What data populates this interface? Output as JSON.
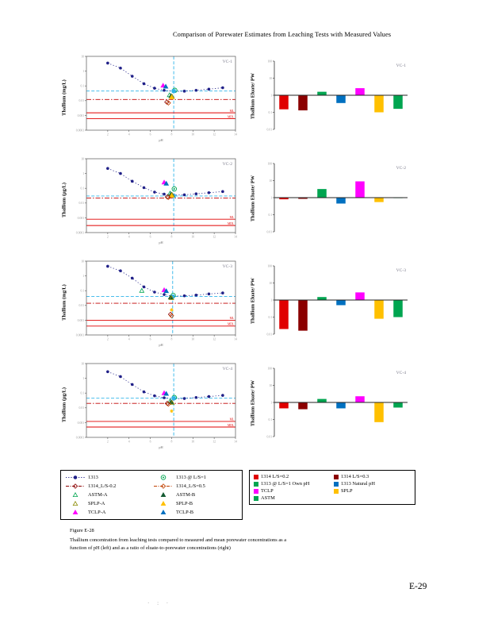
{
  "page": {
    "header_title": "Comparison of Porewater Estimates from Leaching Tests with Measured Values",
    "figure_label": "Figure E-28",
    "caption": "Thallium concentration from leaching tests compared to measured and mean porewater concentrations as a function of pH (left) and as a ratio of eluate-to-porewater concentrations (right)",
    "page_number": "E-29",
    "footer_marks": "· : ·"
  },
  "colors": {
    "series_1313": "#202088",
    "porewater_line": "#2FB4E9",
    "mean_pw_line": "#C00000",
    "limit_line": "#E00000",
    "axis": "#555555",
    "tick_text": "#999999",
    "title_text": "#777788"
  },
  "legend_left": {
    "items": [
      {
        "label": "1313",
        "shape": "circle",
        "color": "#202088",
        "open": false,
        "line": "dotted"
      },
      {
        "label": "1313 @ L/S=1",
        "shape": "ring",
        "color": "#00A550",
        "open": true,
        "line": "none"
      },
      {
        "label": "1314_L/S-0.2",
        "shape": "diamond",
        "color": "#8B0000",
        "open": true,
        "line": "dashdot"
      },
      {
        "label": "1314_L/S=0.5",
        "shape": "diamond",
        "color": "#C04000",
        "open": true,
        "line": "dashdot"
      },
      {
        "label": "ASTM-A",
        "shape": "triangle",
        "color": "#00A550",
        "open": true,
        "line": "none"
      },
      {
        "label": "ASTM-B",
        "shape": "triangle",
        "color": "#145A32",
        "open": false,
        "line": "none"
      },
      {
        "label": "SPLP-A",
        "shape": "triangle",
        "color": "#8A8A00",
        "open": true,
        "line": "none"
      },
      {
        "label": "SPLP-B",
        "shape": "triangle",
        "color": "#FFC000",
        "open": false,
        "line": "none"
      },
      {
        "label": "TCLP-A",
        "shape": "triangle",
        "color": "#FF00FF",
        "open": false,
        "line": "none"
      },
      {
        "label": "TCLP-B",
        "shape": "triangle",
        "color": "#0070C0",
        "open": false,
        "line": "none"
      }
    ]
  },
  "legend_right": {
    "items": [
      {
        "label": "1314 L/S=0.2",
        "color": "#E00000"
      },
      {
        "label": "1314 L/S=0.3",
        "color": "#8B0000"
      },
      {
        "label": "1313 @ L/S=1 Own pH",
        "color": "#00A550"
      },
      {
        "label": "1313 Natural pH",
        "color": "#0070C0"
      },
      {
        "label": "TCLP",
        "color": "#FF00FF"
      },
      {
        "label": "SPLP",
        "color": "#FFC000"
      },
      {
        "label": "ASTM",
        "color": "#00A550"
      }
    ]
  },
  "chart_data": [
    {
      "type": "scatter",
      "title": "VC-1",
      "ylabel": "Thallium (mg/L)",
      "xlabel": "pH",
      "xlim": [
        0,
        14
      ],
      "ylim": [
        0.0001,
        10
      ],
      "xticks": [
        2,
        4,
        6,
        8,
        10,
        12,
        14
      ],
      "yticks": [
        10,
        1,
        0.1,
        0.01,
        0.001,
        0.0001
      ],
      "series": {
        "name": "1313",
        "x": [
          2.0,
          3.2,
          4.3,
          5.4,
          6.4,
          7.3,
          8.2,
          9.2,
          10.3,
          11.5,
          12.8
        ],
        "y": [
          3.5,
          1.6,
          0.45,
          0.14,
          0.07,
          0.05,
          0.042,
          0.044,
          0.05,
          0.06,
          0.075
        ]
      },
      "points": [
        {
          "name": "TCLP-A",
          "shape": "triangle",
          "color": "#FF00FF",
          "open": false,
          "x": 7.2,
          "y": 0.105
        },
        {
          "name": "TCLP-B",
          "shape": "triangle",
          "color": "#0070C0",
          "open": false,
          "x": 7.45,
          "y": 0.09
        },
        {
          "name": "1313 @ L/S=1",
          "shape": "ring",
          "color": "#00A550",
          "open": true,
          "x": 8.3,
          "y": 0.05
        },
        {
          "name": "Measured PW",
          "shape": "square",
          "color": "#2FB4E9",
          "open": false,
          "x": 8.2,
          "y": 0.045
        },
        {
          "name": "ASTM-A",
          "shape": "triangle",
          "color": "#00A550",
          "open": true,
          "x": 7.8,
          "y": 0.024
        },
        {
          "name": "ASTM-B",
          "shape": "triangle",
          "color": "#145A32",
          "open": false,
          "x": 7.95,
          "y": 0.021
        },
        {
          "name": "SPLP-A",
          "shape": "triangle",
          "color": "#8A8A00",
          "open": true,
          "x": 8.05,
          "y": 0.019
        },
        {
          "name": "SPLP-B",
          "shape": "triangle",
          "color": "#FFC000",
          "open": false,
          "x": 8.0,
          "y": 0.017
        },
        {
          "name": "1314_L/S-0.2",
          "shape": "diamond",
          "color": "#8B0000",
          "open": true,
          "x": 7.55,
          "y": 0.008
        },
        {
          "name": "1314_L/S=0.5",
          "shape": "diamond",
          "color": "#C04000",
          "open": true,
          "x": 7.7,
          "y": 0.007
        }
      ],
      "refs": {
        "measured_pw": 0.045,
        "pw_ph": 8.2,
        "mean_pw": 0.012,
        "limits": [
          0.0015,
          0.0006
        ],
        "limit_labels": [
          "ML",
          "MDL"
        ]
      }
    },
    {
      "type": "bar",
      "title": "VC-1",
      "ylabel": "Thallium Eluate/ PW",
      "ylim": [
        0.01,
        100
      ],
      "baseline": 1,
      "yticks": [
        100,
        10,
        1,
        0.1,
        0.01
      ],
      "categories": [
        "1314 L/S=0.2",
        "1314 L/S=0.3",
        "1313 @ L/S=1 Own pH",
        "1313 Natural pH",
        "TCLP",
        "SPLP",
        "ASTM"
      ],
      "values": [
        0.15,
        0.13,
        1.6,
        0.35,
        2.6,
        0.1,
        0.16
      ],
      "colors": [
        "#E00000",
        "#8B0000",
        "#00A550",
        "#0070C0",
        "#FF00FF",
        "#FFC000",
        "#00A550"
      ]
    },
    {
      "type": "scatter",
      "title": "VC-2",
      "ylabel": "Thallium (µg/L)",
      "xlabel": "pH",
      "xlim": [
        0,
        14
      ],
      "ylim": [
        0.0001,
        10
      ],
      "xticks": [
        2,
        4,
        6,
        8,
        10,
        12,
        14
      ],
      "yticks": [
        10,
        1,
        0.1,
        0.01,
        0.001,
        0.0001
      ],
      "series": {
        "name": "1313",
        "x": [
          2.0,
          3.2,
          4.3,
          5.4,
          6.4,
          7.3,
          8.2,
          9.2,
          10.3,
          11.5,
          12.8
        ],
        "y": [
          2.2,
          1.0,
          0.3,
          0.11,
          0.055,
          0.04,
          0.034,
          0.036,
          0.042,
          0.05,
          0.06
        ]
      },
      "points": [
        {
          "name": "TCLP-A",
          "shape": "triangle",
          "color": "#FF00FF",
          "open": false,
          "x": 7.3,
          "y": 0.25
        },
        {
          "name": "TCLP-B",
          "shape": "triangle",
          "color": "#0070C0",
          "open": false,
          "x": 7.5,
          "y": 0.21
        },
        {
          "name": "1313 @ L/S=1",
          "shape": "ring",
          "color": "#00A550",
          "open": true,
          "x": 8.25,
          "y": 0.09
        },
        {
          "name": "Measured PW",
          "shape": "square",
          "color": "#2FB4E9",
          "open": false,
          "x": 8.2,
          "y": 0.03
        },
        {
          "name": "ASTM-A",
          "shape": "triangle",
          "color": "#00A550",
          "open": true,
          "x": 7.85,
          "y": 0.045
        },
        {
          "name": "ASTM-B",
          "shape": "triangle",
          "color": "#145A32",
          "open": false,
          "x": 7.95,
          "y": 0.04
        },
        {
          "name": "SPLP-A",
          "shape": "triangle",
          "color": "#8A8A00",
          "open": true,
          "x": 8.05,
          "y": 0.036
        },
        {
          "name": "SPLP-B",
          "shape": "triangle",
          "color": "#FFC000",
          "open": false,
          "x": 8.0,
          "y": 0.032
        },
        {
          "name": "1314_L/S-0.2",
          "shape": "diamond",
          "color": "#8B0000",
          "open": true,
          "x": 7.6,
          "y": 0.026
        },
        {
          "name": "1314_L/S=0.5",
          "shape": "diamond",
          "color": "#C04000",
          "open": true,
          "x": 7.7,
          "y": 0.024
        }
      ],
      "refs": {
        "measured_pw": 0.03,
        "pw_ph": 8.2,
        "mean_pw": 0.022,
        "limits": [
          0.0008,
          0.0003
        ],
        "limit_labels": [
          "ML",
          "MDL"
        ]
      }
    },
    {
      "type": "bar",
      "title": "VC-2",
      "ylabel": "Thallium Eluate/ PW",
      "ylim": [
        0.01,
        100
      ],
      "baseline": 1,
      "yticks": [
        100,
        10,
        1,
        0.1,
        0.01
      ],
      "categories": [
        "1314 L/S=0.2",
        "1314 L/S=0.3",
        "1313 @ L/S=1 Own pH",
        "1313 Natural pH",
        "TCLP",
        "SPLP",
        "ASTM"
      ],
      "values": [
        0.8,
        0.85,
        3.2,
        0.45,
        9,
        0.55,
        0.95
      ],
      "colors": [
        "#E00000",
        "#8B0000",
        "#00A550",
        "#0070C0",
        "#FF00FF",
        "#FFC000",
        "#00A550"
      ]
    },
    {
      "type": "scatter",
      "title": "VC-3",
      "ylabel": "Thallium (mg/L)",
      "xlabel": "pH",
      "xlim": [
        0,
        14
      ],
      "ylim": [
        0.0001,
        10
      ],
      "xticks": [
        2,
        4,
        6,
        8,
        10,
        12,
        14
      ],
      "yticks": [
        10,
        1,
        0.1,
        0.01,
        0.001,
        0.0001
      ],
      "series": {
        "name": "1313",
        "x": [
          2.0,
          3.2,
          4.3,
          5.4,
          6.4,
          7.3,
          8.1,
          9.2,
          10.3,
          11.5,
          12.8
        ],
        "y": [
          4.5,
          2.2,
          0.7,
          0.18,
          0.08,
          0.055,
          0.042,
          0.045,
          0.05,
          0.06,
          0.07
        ]
      },
      "points": [
        {
          "name": "ASTM-A",
          "shape": "triangle",
          "color": "#00A550",
          "open": true,
          "x": 5.2,
          "y": 0.1
        },
        {
          "name": "TCLP-A",
          "shape": "triangle",
          "color": "#FF00FF",
          "open": false,
          "x": 7.3,
          "y": 0.11
        },
        {
          "name": "TCLP-B",
          "shape": "triangle",
          "color": "#0070C0",
          "open": false,
          "x": 7.5,
          "y": 0.095
        },
        {
          "name": "1313 @ L/S=1",
          "shape": "ring",
          "color": "#00A550",
          "open": true,
          "x": 8.15,
          "y": 0.048
        },
        {
          "name": "Measured PW",
          "shape": "square",
          "color": "#2FB4E9",
          "open": false,
          "x": 8.1,
          "y": 0.04
        },
        {
          "name": "ASTM-B",
          "shape": "triangle",
          "color": "#145A32",
          "open": false,
          "x": 7.9,
          "y": 0.035
        },
        {
          "name": "SPLP-A",
          "shape": "triangle",
          "color": "#8A8A00",
          "open": true,
          "x": 8.0,
          "y": 0.032
        },
        {
          "name": "SPLP-B",
          "shape": "star",
          "color": "#FFC000",
          "open": false,
          "x": 8.0,
          "y": 0.005
        },
        {
          "name": "1314_L/S-0.2",
          "shape": "diamond",
          "color": "#8B0000",
          "open": true,
          "x": 7.9,
          "y": 0.0025
        },
        {
          "name": "1314_L/S=0.5",
          "shape": "diamond",
          "color": "#C04000",
          "open": true,
          "x": 8.0,
          "y": 0.002
        }
      ],
      "refs": {
        "measured_pw": 0.04,
        "pw_ph": 8.1,
        "mean_pw": 0.014,
        "limits": [
          0.001,
          0.0004
        ],
        "limit_labels": [
          "ML",
          "MDL"
        ]
      }
    },
    {
      "type": "bar",
      "title": "VC-3",
      "ylabel": "Thallium Eluate/ PW",
      "ylim": [
        0.01,
        100
      ],
      "baseline": 1,
      "yticks": [
        100,
        10,
        1,
        0.1,
        0.01
      ],
      "categories": [
        "1314 L/S=0.2",
        "1314 L/S=0.3",
        "1313 @ L/S=1 Own pH",
        "1313 Natural pH",
        "TCLP",
        "SPLP",
        "ASTM"
      ],
      "values": [
        0.02,
        0.016,
        1.5,
        0.5,
        2.8,
        0.08,
        0.1
      ],
      "colors": [
        "#E00000",
        "#8B0000",
        "#00A550",
        "#0070C0",
        "#FF00FF",
        "#FFC000",
        "#00A550"
      ]
    },
    {
      "type": "scatter",
      "title": "VC-4",
      "ylabel": "Thallium (µg/L)",
      "xlabel": "pH",
      "xlim": [
        0,
        14
      ],
      "ylim": [
        0.0001,
        10
      ],
      "xticks": [
        2,
        4,
        6,
        8,
        10,
        12,
        14
      ],
      "yticks": [
        10,
        1,
        0.1,
        0.01,
        0.001,
        0.0001
      ],
      "series": {
        "name": "1313",
        "x": [
          2.0,
          3.2,
          4.3,
          5.4,
          6.4,
          7.3,
          8.2,
          9.2,
          10.3,
          11.5,
          12.8
        ],
        "y": [
          2.8,
          1.3,
          0.38,
          0.12,
          0.065,
          0.048,
          0.04,
          0.043,
          0.05,
          0.058,
          0.07
        ]
      },
      "points": [
        {
          "name": "TCLP-A",
          "shape": "triangle",
          "color": "#FF00FF",
          "open": false,
          "x": 7.3,
          "y": 0.1
        },
        {
          "name": "TCLP-B",
          "shape": "triangle",
          "color": "#0070C0",
          "open": false,
          "x": 7.5,
          "y": 0.09
        },
        {
          "name": "1313 @ L/S=1",
          "shape": "ring",
          "color": "#00A550",
          "open": true,
          "x": 8.25,
          "y": 0.05
        },
        {
          "name": "Measured PW",
          "shape": "square",
          "color": "#2FB4E9",
          "open": false,
          "x": 8.2,
          "y": 0.045
        },
        {
          "name": "ASTM-A",
          "shape": "triangle",
          "color": "#00A550",
          "open": true,
          "x": 7.85,
          "y": 0.028
        },
        {
          "name": "ASTM-B",
          "shape": "triangle",
          "color": "#145A32",
          "open": false,
          "x": 7.95,
          "y": 0.025
        },
        {
          "name": "SPLP-A",
          "shape": "triangle",
          "color": "#8A8A00",
          "open": true,
          "x": 8.05,
          "y": 0.022
        },
        {
          "name": "SPLP-B",
          "shape": "star",
          "color": "#FFC000",
          "open": false,
          "x": 8.0,
          "y": 0.006
        },
        {
          "name": "1314_L/S-0.2",
          "shape": "diamond",
          "color": "#8B0000",
          "open": true,
          "x": 7.6,
          "y": 0.02
        },
        {
          "name": "1314_L/S=0.5",
          "shape": "diamond",
          "color": "#C04000",
          "open": true,
          "x": 7.7,
          "y": 0.018
        }
      ],
      "refs": {
        "measured_pw": 0.045,
        "pw_ph": 8.2,
        "mean_pw": 0.02,
        "limits": [
          0.0012,
          0.0005
        ],
        "limit_labels": [
          "ML",
          "MDL"
        ]
      }
    },
    {
      "type": "bar",
      "title": "VC-4",
      "ylabel": "Thallium Eluate/ PW",
      "ylim": [
        0.01,
        100
      ],
      "baseline": 1,
      "yticks": [
        100,
        10,
        1,
        0.1,
        0.01
      ],
      "categories": [
        "1314 L/S=0.2",
        "1314 L/S=0.3",
        "1313 @ L/S=1 Own pH",
        "1313 Natural pH",
        "TCLP",
        "SPLP",
        "ASTM"
      ],
      "values": [
        0.45,
        0.4,
        1.6,
        0.45,
        2.3,
        0.07,
        0.5
      ],
      "colors": [
        "#E00000",
        "#8B0000",
        "#00A550",
        "#0070C0",
        "#FF00FF",
        "#FFC000",
        "#00A550"
      ]
    }
  ]
}
